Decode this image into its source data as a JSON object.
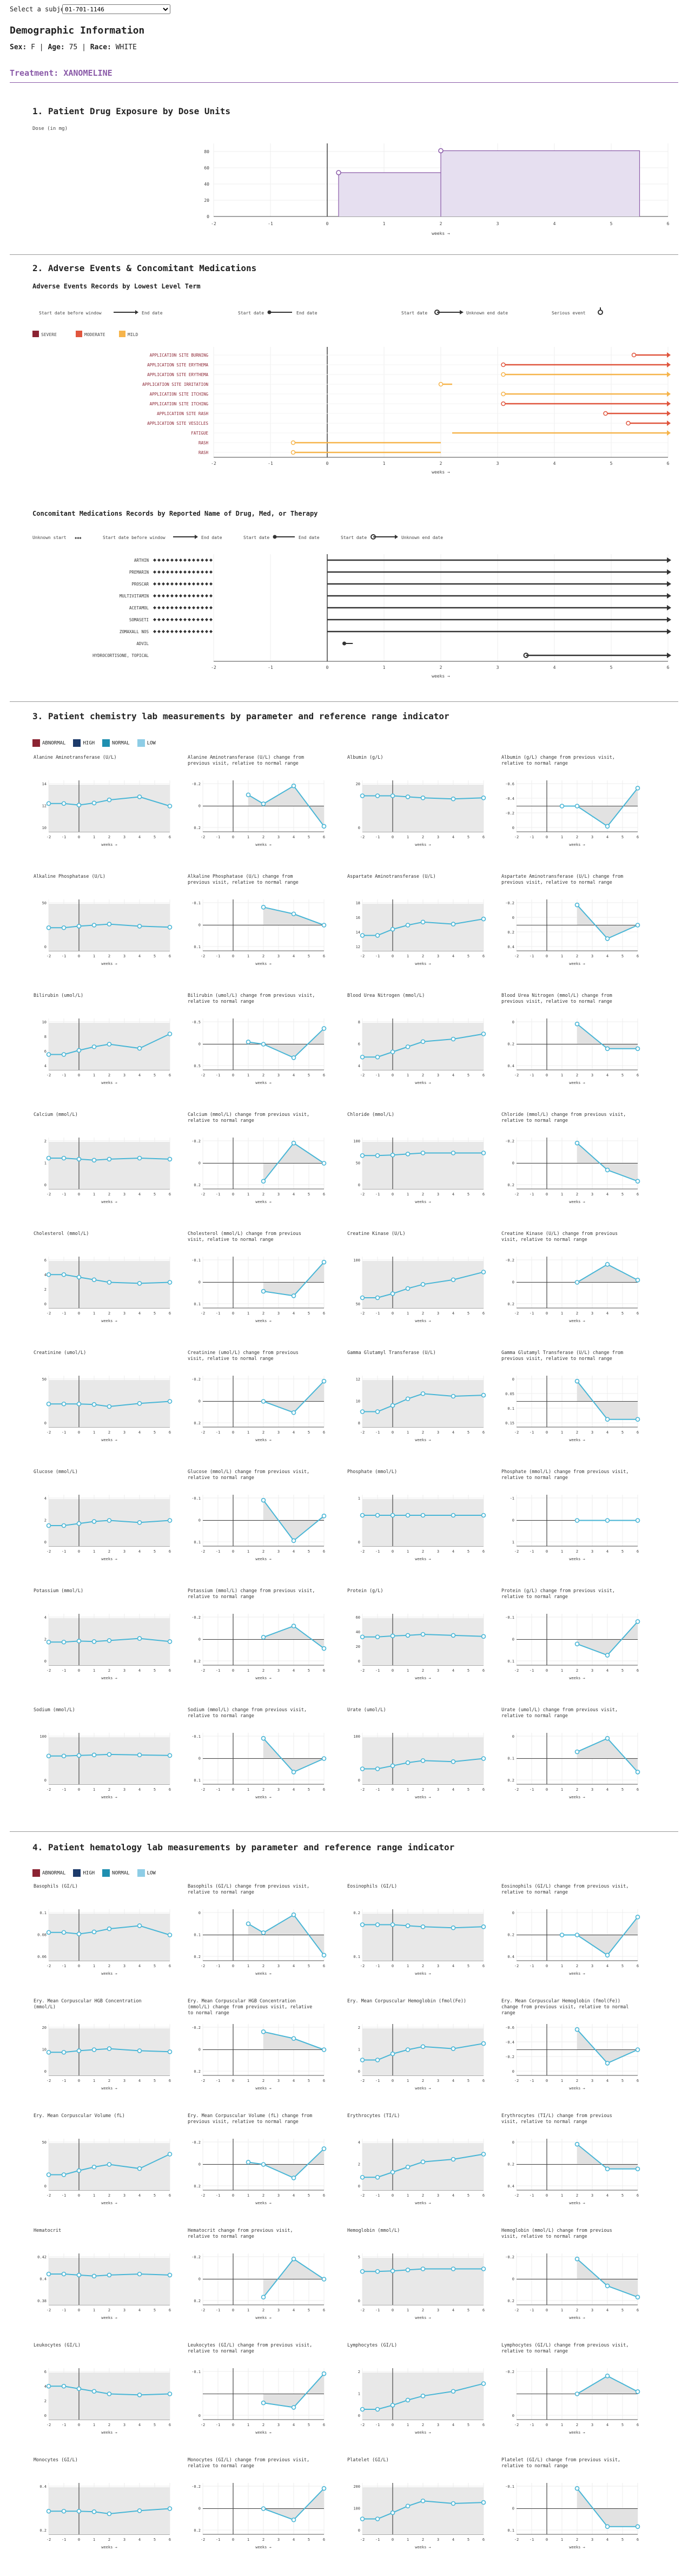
{
  "subject_select": {
    "label": "Select a subject",
    "value": "01-701-1146"
  },
  "demographics": {
    "title": "Demographic Information",
    "sex_label": "Sex:",
    "sex": "F",
    "age_label": "Age:",
    "age": "75",
    "race_label": "Race:",
    "race": "WHITE"
  },
  "treatment": {
    "label": "Treatment:",
    "value": "XANOMELINE"
  },
  "colors": {
    "exposure_fill": "#e6dff0",
    "exposure_line": "#8a5aa8",
    "severe": "#8b2332",
    "moderate": "#e0563e",
    "mild": "#f6b44b",
    "abnormal": "#8b2332",
    "high": "#1d3b6b",
    "normal": "#1f8fb0",
    "low": "#8ecde6",
    "lab_line": "#49b6d6"
  },
  "section1": {
    "title": "1. Patient Drug Exposure by Dose Units",
    "ylabel": "Dose (in mg)",
    "xlabel": "weeks →",
    "x_ticks": [
      "-2",
      "-1",
      "0",
      "1",
      "2",
      "3",
      "4",
      "5",
      "6"
    ],
    "y_ticks": [
      "0",
      "20",
      "40",
      "60",
      "80"
    ]
  },
  "section2": {
    "title": "2. Adverse Events & Concomitant Medications",
    "ae_title": "Adverse Events Records by Lowest Level Term",
    "ae_legend_before": "Start date before window",
    "ae_legend_end": "End date",
    "ae_legend_start": "Start date",
    "ae_legend_end2": "End date",
    "ae_legend_start2": "Start date",
    "ae_legend_unknown": "Unknown end date",
    "ae_legend_serious": "Serious event",
    "severity": [
      {
        "name": "SEVERE",
        "color": "#8b2332"
      },
      {
        "name": "MODERATE",
        "color": "#e0563e"
      },
      {
        "name": "MILD",
        "color": "#f6b44b"
      }
    ],
    "ae_terms": [
      "APPLICATION SITE BURNING",
      "APPLICATION SITE ERYTHEMA",
      "APPLICATION SITE ERYTHEMA",
      "APPLICATION SITE IRRITATION",
      "APPLICATION SITE ITCHING",
      "APPLICATION SITE ITCHING",
      "APPLICATION SITE RASH",
      "APPLICATION SITE VESICLES",
      "FATIGUE",
      "RASH",
      "RASH"
    ],
    "cm_title": "Concomitant Medications Records by Reported Name of Drug, Med, or Therapy",
    "cm_legend_unknown_start": "Unknown start",
    "cm_legend_before": "Start date before window",
    "cm_legend_end": "End date",
    "cm_legend_start": "Start date",
    "cm_legend_end2": "End date",
    "cm_legend_start2": "Start date",
    "cm_legend_unknown_end": "Unknown end date",
    "cm_meds": [
      "ARTHIN",
      "PREMARIN",
      "PROSCAR",
      "MULTIVITAMIN",
      "ACETAMOL",
      "SOMASETI",
      "ZOMAXALL NOS",
      "ADVIL",
      "HYDROCORTISONE, TOPICAL"
    ],
    "xlabel": "weeks →",
    "x_ticks": [
      "-2",
      "-1",
      "0",
      "1",
      "2",
      "3",
      "4",
      "5",
      "6"
    ]
  },
  "section3": {
    "title": "3. Patient chemistry lab measurements by parameter and reference range indicator",
    "legend": [
      "ABNORMAL",
      "HIGH",
      "NORMAL",
      "LOW"
    ],
    "xlabel": "weeks →",
    "x_ticks": [
      "-2",
      "-1",
      "0",
      "1",
      "2",
      "3",
      "4",
      "5",
      "6"
    ],
    "rows": [
      {
        "a": "Alanine Aminotransferase (U/L)",
        "a_ticks": [
          "10",
          "12",
          "14"
        ],
        "b": "Alanine Aminotransferase (U/L) change from previous visit, relative to normal range",
        "b_ticks": [
          "0.2",
          "0",
          "-0.2"
        ],
        "c": "Albumin (g/L)",
        "c_ticks": [
          "0",
          "20"
        ],
        "d": "Albumin (g/L) change from previous visit, relative to normal range",
        "d_ticks": [
          "0",
          "-0.2",
          "-0.4",
          "-0.6"
        ]
      },
      {
        "a": "Alkaline Phosphatase (U/L)",
        "a_ticks": [
          "0",
          "50"
        ],
        "b": "Alkaline Phosphatase (U/L) change from previous visit, relative to normal range",
        "b_ticks": [
          "0.1",
          "0",
          "-0.1"
        ],
        "c": "Aspartate Aminotransferase (U/L)",
        "c_ticks": [
          "12",
          "14",
          "16",
          "18"
        ],
        "d": "Aspartate Aminotransferase (U/L) change from previous visit, relative to normal range",
        "d_ticks": [
          "0.4",
          "0.2",
          "0",
          "-0.2"
        ]
      },
      {
        "a": "Bilirubin (umol/L)",
        "a_ticks": [
          "4",
          "6",
          "8",
          "10"
        ],
        "b": "Bilirubin (umol/L) change from previous visit, relative to normal range",
        "b_ticks": [
          "0.5",
          "0",
          "-0.5"
        ],
        "c": "Blood Urea Nitrogen (mmol/L)",
        "c_ticks": [
          "4",
          "6",
          "8"
        ],
        "d": "Blood Urea Nitrogen (mmol/L) change from previous visit, relative to normal range",
        "d_ticks": [
          "0.4",
          "0.2",
          "0"
        ]
      },
      {
        "a": "Calcium (mmol/L)",
        "a_ticks": [
          "0",
          "1",
          "2"
        ],
        "b": "Calcium (mmol/L) change from previous visit, relative to normal range",
        "b_ticks": [
          "0.2",
          "0",
          "-0.2"
        ],
        "c": "Chloride (mmol/L)",
        "c_ticks": [
          "0",
          "50",
          "100"
        ],
        "d": "Chloride (mmol/L) change from previous visit, relative to normal range",
        "d_ticks": [
          "0.2",
          "0",
          "-0.2"
        ]
      },
      {
        "a": "Cholesterol (mmol/L)",
        "a_ticks": [
          "0",
          "2",
          "4",
          "6"
        ],
        "b": "Cholesterol (mmol/L) change from previous visit, relative to normal range",
        "b_ticks": [
          "0.1",
          "0",
          "-0.1"
        ],
        "c": "Creatine Kinase (U/L)",
        "c_ticks": [
          "50",
          "100"
        ],
        "d": "Creatine Kinase (U/L) change from previous visit, relative to normal range",
        "d_ticks": [
          "0.2",
          "0",
          "-0.2"
        ]
      },
      {
        "a": "Creatinine (umol/L)",
        "a_ticks": [
          "0",
          "50"
        ],
        "b": "Creatinine (umol/L) change from previous visit, relative to normal range",
        "b_ticks": [
          "0.2",
          "0",
          "-0.2"
        ],
        "c": "Gamma Glutamyl Transferase (U/L)",
        "c_ticks": [
          "8",
          "10",
          "12"
        ],
        "d": "Gamma Glutamyl Transferase (U/L) change from previous visit, relative to normal range",
        "d_ticks": [
          "0.15",
          "0.1",
          "0.05",
          "0"
        ]
      },
      {
        "a": "Glucose (mmol/L)",
        "a_ticks": [
          "0",
          "2",
          "4"
        ],
        "b": "Glucose (mmol/L) change from previous visit, relative to normal range",
        "b_ticks": [
          "0.1",
          "0",
          "-0.1"
        ],
        "c": "Phosphate (mmol/L)",
        "c_ticks": [
          "0",
          "1"
        ],
        "d": "Phosphate (mmol/L) change from previous visit, relative to normal range",
        "d_ticks": [
          "1",
          "0",
          "-1"
        ]
      },
      {
        "a": "Potassium (mmol/L)",
        "a_ticks": [
          "0",
          "2",
          "4"
        ],
        "b": "Potassium (mmol/L) change from previous visit, relative to normal range",
        "b_ticks": [
          "0.2",
          "0",
          "-0.2"
        ],
        "c": "Protein (g/L)",
        "c_ticks": [
          "0",
          "20",
          "40",
          "60"
        ],
        "d": "Protein (g/L) change from previous visit, relative to normal range",
        "d_ticks": [
          "0.1",
          "0",
          "-0.1"
        ]
      },
      {
        "a": "Sodium (mmol/L)",
        "a_ticks": [
          "0",
          "100"
        ],
        "b": "Sodium (mmol/L) change from previous visit, relative to normal range",
        "b_ticks": [
          "0.1",
          "0",
          "-0.1"
        ],
        "c": "Urate (umol/L)",
        "c_ticks": [
          "0",
          "100"
        ],
        "d": "Urate (umol/L) change from previous visit, relative to normal range",
        "d_ticks": [
          "0.2",
          "0.1",
          "0"
        ]
      }
    ]
  },
  "section4": {
    "title": "4. Patient hematology lab measurements by parameter and reference range indicator",
    "legend": [
      "ABNORMAL",
      "HIGH",
      "NORMAL",
      "LOW"
    ],
    "xlabel": "weeks →",
    "x_ticks": [
      "-2",
      "-1",
      "0",
      "1",
      "2",
      "3",
      "4",
      "5",
      "6"
    ],
    "rows": [
      {
        "a": "Basophils (GI/L)",
        "a_ticks": [
          "0.06",
          "0.08",
          "0.1"
        ],
        "b": "Basophils (GI/L) change from previous visit, relative to normal range",
        "b_ticks": [
          "0.2",
          "0.1",
          "0"
        ],
        "c": "Eosinophils (GI/L)",
        "c_ticks": [
          "0.1",
          "0.2"
        ],
        "d": "Eosinophils (GI/L) change from previous visit, relative to normal range",
        "d_ticks": [
          "0.4",
          "0.2",
          "0"
        ]
      },
      {
        "a": "Ery. Mean Corpuscular HGB Concentration (mmol/L)",
        "a_ticks": [
          "0",
          "10",
          "20"
        ],
        "b": "Ery. Mean Corpuscular HGB Concentration (mmol/L) change from previous visit, relative to normal range",
        "b_ticks": [
          "0.2",
          "0",
          "-0.2"
        ],
        "c": "Ery. Mean Corpuscular Hemoglobin (fmol(Fe))",
        "c_ticks": [
          "0",
          "1",
          "2"
        ],
        "d": "Ery. Mean Corpuscular Hemoglobin (fmol(Fe)) change from previous visit, relative to normal range",
        "d_ticks": [
          "0",
          "-0.2",
          "-0.4",
          "-0.6"
        ]
      },
      {
        "a": "Ery. Mean Corpuscular Volume (fL)",
        "a_ticks": [
          "0",
          "50"
        ],
        "b": "Ery. Mean Corpuscular Volume (fL) change from previous visit, relative to normal range",
        "b_ticks": [
          "0.2",
          "0",
          "-0.2"
        ],
        "c": "Erythrocytes (TI/L)",
        "c_ticks": [
          "0",
          "2",
          "4"
        ],
        "d": "Erythrocytes (TI/L) change from previous visit, relative to normal range",
        "d_ticks": [
          "0.4",
          "0.2",
          "0"
        ]
      },
      {
        "a": "Hematocrit",
        "a_ticks": [
          "0.38",
          "0.4",
          "0.42"
        ],
        "b": "Hematocrit change from previous visit, relative to normal range",
        "b_ticks": [
          "0.2",
          "0",
          "-0.2"
        ],
        "c": "Hemoglobin (mmol/L)",
        "c_ticks": [
          "0",
          "5"
        ],
        "d": "Hemoglobin (mmol/L) change from previous visit, relative to normal range",
        "d_ticks": [
          "0.2",
          "0",
          "-0.2"
        ]
      },
      {
        "a": "Leukocytes (GI/L)",
        "a_ticks": [
          "0",
          "2",
          "4",
          "6"
        ],
        "b": "Leukocytes (GI/L) change from previous visit, relative to normal range",
        "b_ticks": [
          "0",
          "-0.1"
        ],
        "c": "Lymphocytes (GI/L)",
        "c_ticks": [
          "0",
          "1",
          "2"
        ],
        "d": "Lymphocytes (GI/L) change from previous visit, relative to normal range",
        "d_ticks": [
          "0",
          "-0.2"
        ]
      },
      {
        "a": "Monocytes (GI/L)",
        "a_ticks": [
          "0.2",
          "0.4"
        ],
        "b": "Monocytes (GI/L) change from previous visit, relative to normal range",
        "b_ticks": [
          "0.2",
          "0",
          "-0.2"
        ],
        "c": "Platelet (GI/L)",
        "c_ticks": [
          "0",
          "100",
          "200"
        ],
        "d": "Platelet (GI/L) change from previous visit, relative to normal range",
        "d_ticks": [
          "0.1",
          "0",
          "-0.1"
        ]
      }
    ]
  }
}
